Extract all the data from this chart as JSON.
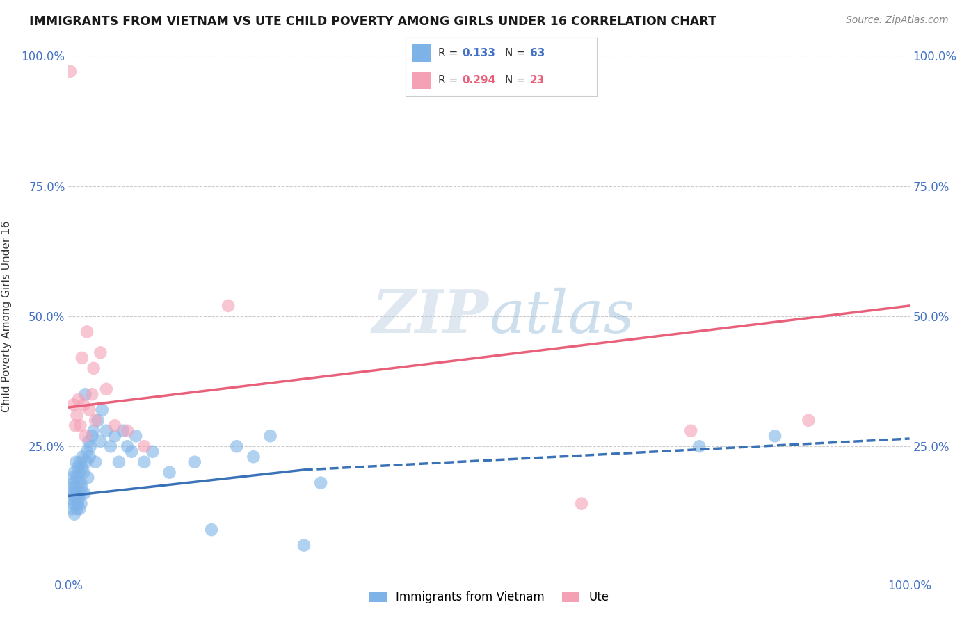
{
  "title": "IMMIGRANTS FROM VIETNAM VS UTE CHILD POVERTY AMONG GIRLS UNDER 16 CORRELATION CHART",
  "source": "Source: ZipAtlas.com",
  "ylabel": "Child Poverty Among Girls Under 16",
  "xlim": [
    0.0,
    1.0
  ],
  "ylim": [
    0.0,
    1.0
  ],
  "xticks": [
    0.0,
    0.1,
    0.2,
    0.3,
    0.4,
    0.5,
    0.6,
    0.7,
    0.8,
    0.9,
    1.0
  ],
  "xticklabels": [
    "0.0%",
    "",
    "",
    "",
    "",
    "",
    "",
    "",
    "",
    "",
    "100.0%"
  ],
  "yticks": [
    0.0,
    0.25,
    0.5,
    0.75,
    1.0
  ],
  "yticklabels": [
    "",
    "25.0%",
    "50.0%",
    "75.0%",
    "100.0%"
  ],
  "legend_labels": [
    "Immigrants from Vietnam",
    "Ute"
  ],
  "blue_color": "#7EB3E8",
  "pink_color": "#F4A0B5",
  "blue_line_color": "#3A72B8",
  "pink_line_color": "#E8607A",
  "R_blue": 0.133,
  "N_blue": 63,
  "R_pink": 0.294,
  "N_pink": 23,
  "blue_scatter_x": [
    0.002,
    0.003,
    0.004,
    0.005,
    0.005,
    0.006,
    0.006,
    0.007,
    0.007,
    0.008,
    0.008,
    0.009,
    0.009,
    0.01,
    0.01,
    0.011,
    0.011,
    0.012,
    0.012,
    0.013,
    0.013,
    0.014,
    0.014,
    0.015,
    0.015,
    0.016,
    0.016,
    0.017,
    0.018,
    0.019,
    0.02,
    0.021,
    0.022,
    0.023,
    0.024,
    0.025,
    0.026,
    0.028,
    0.03,
    0.032,
    0.035,
    0.038,
    0.04,
    0.045,
    0.05,
    0.055,
    0.06,
    0.065,
    0.07,
    0.075,
    0.08,
    0.09,
    0.1,
    0.12,
    0.15,
    0.17,
    0.2,
    0.22,
    0.24,
    0.28,
    0.3,
    0.75,
    0.84
  ],
  "blue_scatter_y": [
    0.15,
    0.17,
    0.13,
    0.16,
    0.19,
    0.14,
    0.18,
    0.12,
    0.2,
    0.15,
    0.17,
    0.16,
    0.22,
    0.13,
    0.19,
    0.14,
    0.21,
    0.15,
    0.18,
    0.13,
    0.2,
    0.16,
    0.22,
    0.14,
    0.18,
    0.17,
    0.21,
    0.23,
    0.2,
    0.16,
    0.35,
    0.22,
    0.24,
    0.19,
    0.26,
    0.23,
    0.25,
    0.27,
    0.28,
    0.22,
    0.3,
    0.26,
    0.32,
    0.28,
    0.25,
    0.27,
    0.22,
    0.28,
    0.25,
    0.24,
    0.27,
    0.22,
    0.24,
    0.2,
    0.22,
    0.09,
    0.25,
    0.23,
    0.27,
    0.06,
    0.18,
    0.25,
    0.27
  ],
  "pink_scatter_x": [
    0.002,
    0.006,
    0.008,
    0.01,
    0.012,
    0.014,
    0.016,
    0.018,
    0.02,
    0.022,
    0.025,
    0.028,
    0.032,
    0.038,
    0.045,
    0.055,
    0.07,
    0.09,
    0.03,
    0.19,
    0.61,
    0.74,
    0.88
  ],
  "pink_scatter_y": [
    0.97,
    0.33,
    0.29,
    0.31,
    0.34,
    0.29,
    0.42,
    0.33,
    0.27,
    0.47,
    0.32,
    0.35,
    0.3,
    0.43,
    0.36,
    0.29,
    0.28,
    0.25,
    0.4,
    0.52,
    0.14,
    0.28,
    0.3
  ],
  "blue_line_x0": 0.0,
  "blue_line_x_solid_end": 0.28,
  "blue_line_x1": 1.0,
  "blue_line_y0": 0.155,
  "blue_line_y_solid_end": 0.205,
  "blue_line_y1": 0.265,
  "pink_line_x0": 0.0,
  "pink_line_x1": 1.0,
  "pink_line_y0": 0.325,
  "pink_line_y1": 0.52,
  "watermark_zip": "ZIP",
  "watermark_atlas": "atlas",
  "background_color": "#FFFFFF",
  "grid_color": "#CCCCCC"
}
